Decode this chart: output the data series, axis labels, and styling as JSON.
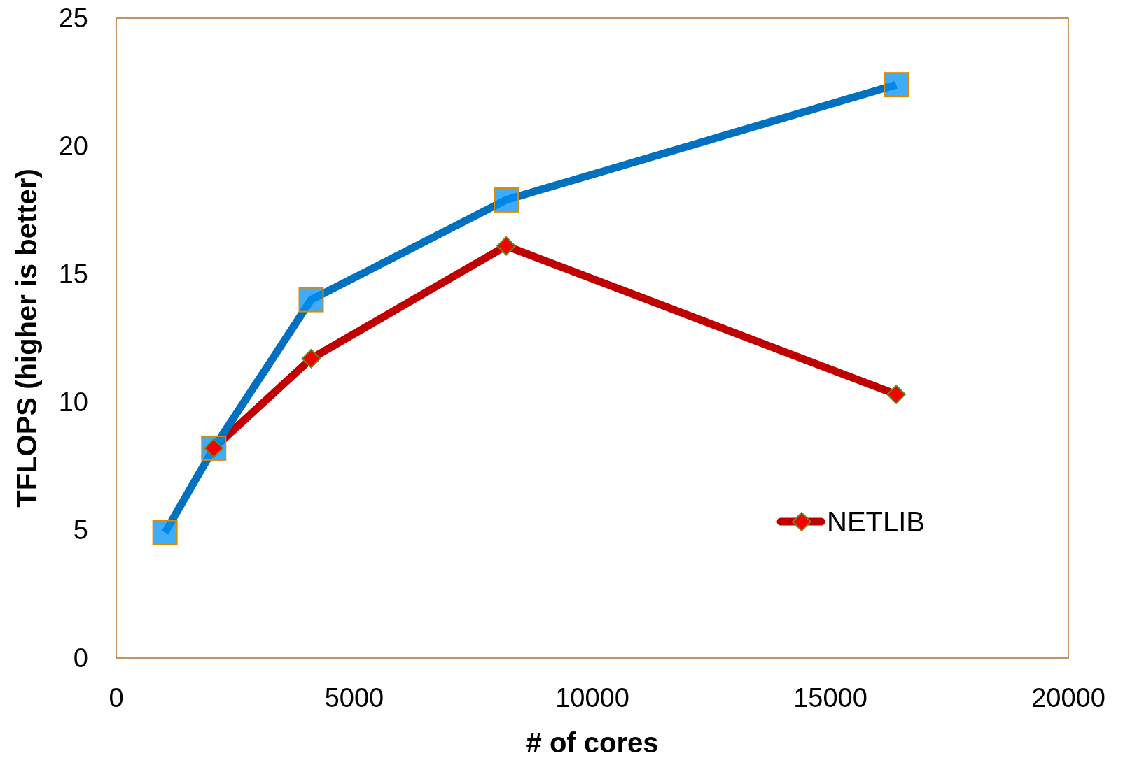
{
  "chart_data": {
    "type": "line",
    "xlabel": "# of cores",
    "ylabel": "TFLOPS (higher is better)",
    "x": [
      1024,
      2048,
      4096,
      8192,
      16384
    ],
    "series": [
      {
        "name": "NETLIB",
        "color": "#c00000",
        "marker": "diamond",
        "values": [
          null,
          8.2,
          11.7,
          16.1,
          10.3
        ]
      },
      {
        "color": "#0070c0",
        "marker": "square",
        "values": [
          4.9,
          8.2,
          14.0,
          17.9,
          22.4
        ]
      }
    ],
    "xlim": [
      0,
      20000
    ],
    "xticks": [
      0,
      5000,
      10000,
      15000,
      20000
    ],
    "ylim": [
      0,
      25
    ],
    "yticks": [
      0,
      5,
      10,
      15,
      20,
      25
    ],
    "grid": false,
    "legend": "bottom right"
  }
}
